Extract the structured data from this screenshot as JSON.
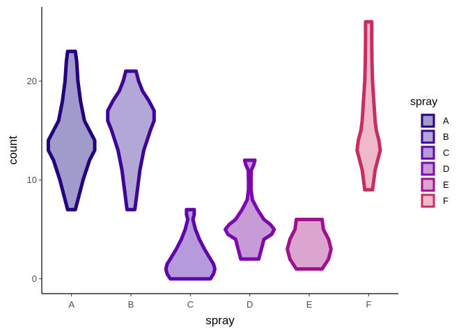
{
  "chart_data": {
    "type": "violin",
    "xlabel": "spray",
    "ylabel": "count",
    "categories": [
      "A",
      "B",
      "C",
      "D",
      "E",
      "F"
    ],
    "ylim": [
      -1.5,
      27.5
    ],
    "yticks": [
      0,
      10,
      20
    ],
    "grid": false,
    "legend": {
      "title": "spray",
      "placement": "right",
      "labels": [
        "A",
        "B",
        "C",
        "D",
        "E",
        "F"
      ]
    },
    "violins": [
      {
        "category": "A",
        "stroke": "#23007E",
        "fill": "#A19BCB",
        "profile": [
          [
            7,
            0.15
          ],
          [
            8,
            0.25
          ],
          [
            10,
            0.45
          ],
          [
            12,
            0.7
          ],
          [
            13,
            0.9
          ],
          [
            14,
            0.9
          ],
          [
            15,
            0.7
          ],
          [
            16,
            0.5
          ],
          [
            18,
            0.35
          ],
          [
            20,
            0.25
          ],
          [
            22,
            0.2
          ],
          [
            23,
            0.15
          ]
        ]
      },
      {
        "category": "B",
        "stroke": "#3E0495",
        "fill": "#B2A7D6",
        "profile": [
          [
            7,
            0.15
          ],
          [
            9,
            0.25
          ],
          [
            11,
            0.35
          ],
          [
            13,
            0.5
          ],
          [
            15,
            0.75
          ],
          [
            16,
            0.9
          ],
          [
            17,
            0.9
          ],
          [
            18,
            0.7
          ],
          [
            19,
            0.45
          ],
          [
            20,
            0.3
          ],
          [
            21,
            0.2
          ]
        ]
      },
      {
        "category": "C",
        "stroke": "#5F06A9",
        "fill": "#B69BDC",
        "profile": [
          [
            0,
            0.78
          ],
          [
            0.5,
            0.9
          ],
          [
            1,
            0.95
          ],
          [
            1.5,
            0.9
          ],
          [
            2,
            0.78
          ],
          [
            3,
            0.55
          ],
          [
            4,
            0.35
          ],
          [
            5,
            0.2
          ],
          [
            6,
            0.1
          ],
          [
            6.5,
            0.15
          ],
          [
            7,
            0.15
          ]
        ]
      },
      {
        "category": "D",
        "stroke": "#7C08AE",
        "fill": "#C79CD6",
        "profile": [
          [
            2,
            0.35
          ],
          [
            3,
            0.45
          ],
          [
            4,
            0.55
          ],
          [
            4.5,
            0.85
          ],
          [
            5,
            0.95
          ],
          [
            5.5,
            0.8
          ],
          [
            6,
            0.55
          ],
          [
            7,
            0.3
          ],
          [
            8,
            0.1
          ],
          [
            9,
            0.05
          ],
          [
            10,
            0.05
          ],
          [
            11,
            0.06
          ],
          [
            11.5,
            0.15
          ],
          [
            12,
            0.2
          ]
        ]
      },
      {
        "category": "E",
        "stroke": "#A0118C",
        "fill": "#DBA5D0",
        "profile": [
          [
            1,
            0.5
          ],
          [
            2,
            0.75
          ],
          [
            3,
            0.85
          ],
          [
            4,
            0.75
          ],
          [
            5,
            0.55
          ],
          [
            6,
            0.5
          ]
        ]
      },
      {
        "category": "F",
        "stroke": "#C42E62",
        "fill": "#EFB9CB",
        "profile": [
          [
            9,
            0.15
          ],
          [
            11,
            0.25
          ],
          [
            12,
            0.35
          ],
          [
            13,
            0.45
          ],
          [
            14,
            0.4
          ],
          [
            15,
            0.3
          ],
          [
            16,
            0.25
          ],
          [
            18,
            0.2
          ],
          [
            20,
            0.15
          ],
          [
            22,
            0.13
          ],
          [
            24,
            0.12
          ],
          [
            26,
            0.12
          ]
        ]
      }
    ]
  }
}
